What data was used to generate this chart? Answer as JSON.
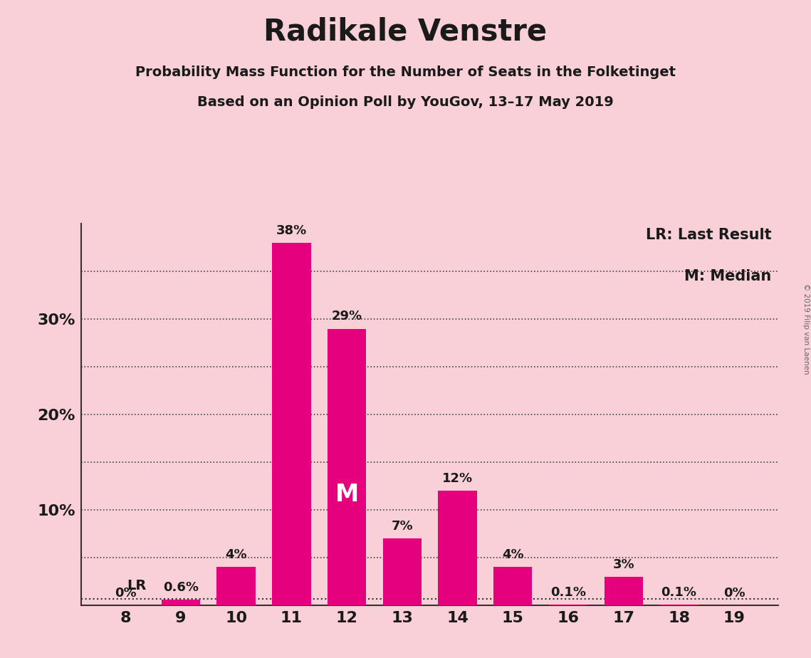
{
  "title": "Radikale Venstre",
  "subtitle1": "Probability Mass Function for the Number of Seats in the Folketinget",
  "subtitle2": "Based on an Opinion Poll by YouGov, 13–17 May 2019",
  "seats": [
    8,
    9,
    10,
    11,
    12,
    13,
    14,
    15,
    16,
    17,
    18,
    19
  ],
  "values": [
    0.0,
    0.6,
    4.0,
    38.0,
    29.0,
    7.0,
    12.0,
    4.0,
    0.1,
    3.0,
    0.1,
    0.0
  ],
  "bar_labels": [
    "0%",
    "0.6%",
    "4%",
    "38%",
    "29%",
    "7%",
    "12%",
    "4%",
    "0.1%",
    "3%",
    "0.1%",
    "0%"
  ],
  "bar_color": "#E5007D",
  "background_color": "#F9D0D8",
  "title_color": "#1a1a1a",
  "median_seat": 12,
  "median_label": "M",
  "lr_seat": 8,
  "lr_label": "LR",
  "lr_line_value": 0.65,
  "legend_text1": "LR: Last Result",
  "legend_text2": "M: Median",
  "watermark": "© 2019 Filip van Laenen",
  "ylim": [
    0,
    40
  ],
  "gridlines": [
    5,
    10,
    15,
    20,
    25,
    30,
    35
  ]
}
